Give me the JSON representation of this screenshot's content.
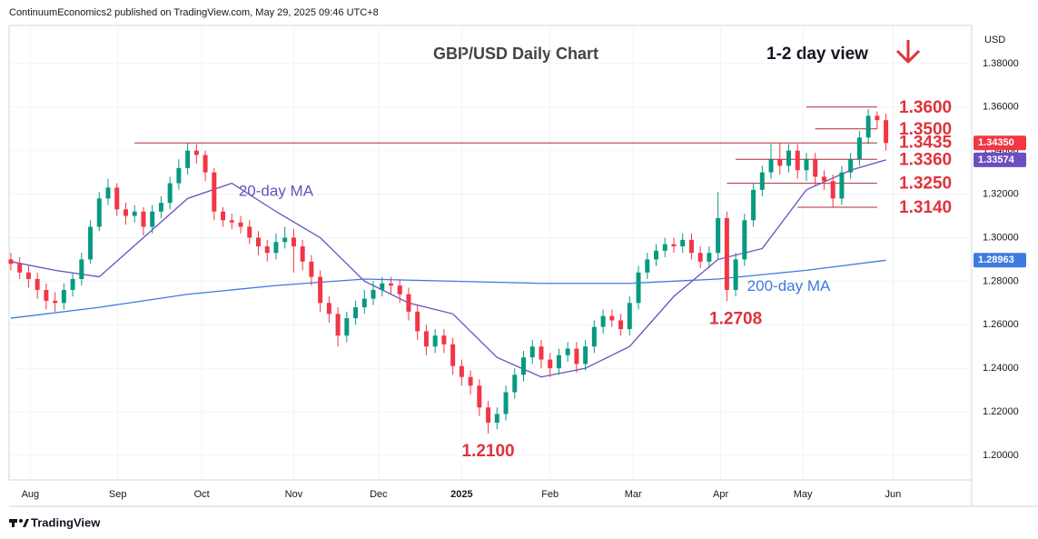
{
  "header": "ContinuumEconomics2 published on TradingView.com, May 29, 2025 09:46 UTC+8",
  "footer": "TradingView",
  "chart_data": {
    "type": "candlestick",
    "title": "GBP/USD Daily Chart",
    "subtitle": "1-2 day view",
    "currency": "USD",
    "up_color": "#089981",
    "down_color": "#f23645",
    "open": [
      1.29,
      1.288,
      1.284,
      1.281,
      1.276,
      1.271,
      1.27,
      1.276,
      1.281,
      1.29,
      1.305,
      1.318,
      1.323,
      1.313,
      1.31,
      1.312,
      1.305,
      1.312,
      1.316,
      1.325,
      1.332,
      1.34,
      1.338,
      1.33,
      1.312,
      1.308,
      1.307,
      1.305,
      1.3,
      1.296,
      1.293,
      1.298,
      1.3,
      1.296,
      1.289,
      1.282,
      1.27,
      1.265,
      1.255,
      1.263,
      1.268,
      1.272,
      1.276,
      1.279,
      1.278,
      1.274,
      1.266,
      1.257,
      1.25,
      1.255,
      1.251,
      1.241,
      1.236,
      1.232,
      1.222,
      1.215,
      1.219,
      1.229,
      1.237,
      1.245,
      1.25,
      1.244,
      1.24,
      1.246,
      1.249,
      1.242,
      1.25,
      1.259,
      1.264,
      1.262,
      1.258,
      1.27,
      1.284,
      1.29,
      1.294,
      1.297,
      1.296,
      1.299,
      1.293,
      1.289,
      1.293,
      1.309,
      1.276,
      1.29,
      1.308,
      1.322,
      1.33,
      1.336,
      1.333,
      1.34,
      1.331,
      1.336,
      1.328,
      1.326,
      1.318,
      1.33,
      1.336,
      1.346,
      1.356,
      1.354
    ],
    "high": [
      1.293,
      1.291,
      1.287,
      1.284,
      1.279,
      1.275,
      1.279,
      1.284,
      1.293,
      1.308,
      1.321,
      1.327,
      1.325,
      1.316,
      1.315,
      1.314,
      1.315,
      1.319,
      1.328,
      1.336,
      1.3435,
      1.343,
      1.34,
      1.332,
      1.314,
      1.311,
      1.31,
      1.308,
      1.303,
      1.299,
      1.302,
      1.305,
      1.304,
      1.299,
      1.292,
      1.285,
      1.273,
      1.268,
      1.266,
      1.271,
      1.276,
      1.28,
      1.282,
      1.282,
      1.281,
      1.277,
      1.269,
      1.26,
      1.258,
      1.258,
      1.254,
      1.244,
      1.239,
      1.235,
      1.225,
      1.222,
      1.232,
      1.24,
      1.248,
      1.253,
      1.253,
      1.247,
      1.249,
      1.252,
      1.252,
      1.253,
      1.262,
      1.267,
      1.267,
      1.265,
      1.273,
      1.287,
      1.293,
      1.297,
      1.3,
      1.3,
      1.302,
      1.302,
      1.296,
      1.296,
      1.321,
      1.312,
      1.293,
      1.311,
      1.325,
      1.333,
      1.343,
      1.3435,
      1.343,
      1.343,
      1.339,
      1.339,
      1.331,
      1.329,
      1.333,
      1.339,
      1.349,
      1.359,
      1.358,
      1.357
    ],
    "low": [
      1.285,
      1.281,
      1.277,
      1.272,
      1.267,
      1.266,
      1.267,
      1.273,
      1.278,
      1.288,
      1.303,
      1.315,
      1.31,
      1.306,
      1.307,
      1.301,
      1.302,
      1.309,
      1.313,
      1.322,
      1.329,
      1.334,
      1.326,
      1.308,
      1.305,
      1.304,
      1.302,
      1.297,
      1.292,
      1.289,
      1.29,
      1.295,
      1.284,
      1.285,
      1.278,
      1.266,
      1.261,
      1.25,
      1.252,
      1.26,
      1.265,
      1.269,
      1.273,
      1.274,
      1.27,
      1.262,
      1.253,
      1.246,
      1.247,
      1.247,
      1.237,
      1.232,
      1.228,
      1.218,
      1.21,
      1.212,
      1.216,
      1.226,
      1.234,
      1.242,
      1.24,
      1.236,
      1.237,
      1.243,
      1.238,
      1.239,
      1.247,
      1.256,
      1.259,
      1.255,
      1.255,
      1.267,
      1.281,
      1.287,
      1.291,
      1.293,
      1.293,
      1.29,
      1.286,
      1.286,
      1.29,
      1.2708,
      1.273,
      1.287,
      1.305,
      1.319,
      1.327,
      1.329,
      1.33,
      1.327,
      1.326,
      1.324,
      1.322,
      1.314,
      1.315,
      1.327,
      1.333,
      1.343,
      1.35,
      1.34
    ],
    "close": [
      1.288,
      1.284,
      1.281,
      1.276,
      1.271,
      1.27,
      1.276,
      1.281,
      1.29,
      1.305,
      1.318,
      1.323,
      1.313,
      1.31,
      1.312,
      1.305,
      1.312,
      1.316,
      1.325,
      1.332,
      1.34,
      1.338,
      1.33,
      1.312,
      1.308,
      1.307,
      1.305,
      1.3,
      1.296,
      1.293,
      1.298,
      1.3,
      1.296,
      1.289,
      1.282,
      1.27,
      1.265,
      1.255,
      1.263,
      1.268,
      1.272,
      1.276,
      1.279,
      1.278,
      1.274,
      1.266,
      1.257,
      1.25,
      1.255,
      1.251,
      1.241,
      1.236,
      1.232,
      1.222,
      1.215,
      1.219,
      1.229,
      1.237,
      1.245,
      1.25,
      1.244,
      1.24,
      1.246,
      1.249,
      1.242,
      1.25,
      1.259,
      1.264,
      1.262,
      1.258,
      1.27,
      1.284,
      1.29,
      1.294,
      1.297,
      1.296,
      1.299,
      1.293,
      1.289,
      1.293,
      1.309,
      1.276,
      1.29,
      1.308,
      1.322,
      1.33,
      1.336,
      1.333,
      1.34,
      1.331,
      1.336,
      1.328,
      1.326,
      1.318,
      1.33,
      1.336,
      1.346,
      1.356,
      1.354,
      1.3435
    ],
    "last_label": "1.34350",
    "series": [
      {
        "name": "20-day MA",
        "color": "#6a4fc0",
        "last_label": "1.33574",
        "x": [
          0,
          5,
          10,
          15,
          20,
          25,
          30,
          35,
          40,
          45,
          50,
          55,
          60,
          65,
          70,
          75,
          80,
          85,
          90,
          95,
          99
        ],
        "values": [
          1.289,
          1.285,
          1.282,
          1.3,
          1.318,
          1.325,
          1.312,
          1.3,
          1.28,
          1.27,
          1.265,
          1.245,
          1.236,
          1.24,
          1.25,
          1.273,
          1.29,
          1.295,
          1.322,
          1.331,
          1.33574
        ]
      },
      {
        "name": "200-day MA",
        "color": "#3d7be0",
        "last_label": "1.28963",
        "x": [
          0,
          10,
          20,
          30,
          40,
          50,
          60,
          70,
          80,
          90,
          99
        ],
        "values": [
          1.263,
          1.268,
          1.274,
          1.278,
          1.281,
          1.28,
          1.279,
          1.279,
          1.281,
          1.285,
          1.28963
        ]
      }
    ],
    "levels": [
      {
        "value": 1.36,
        "label": "1.3600"
      },
      {
        "value": 1.35,
        "label": "1.3500"
      },
      {
        "value": 1.3435,
        "label": "1.3435"
      },
      {
        "value": 1.336,
        "label": "1.3360"
      },
      {
        "value": 1.325,
        "label": "1.3250"
      },
      {
        "value": 1.314,
        "label": "1.3140"
      }
    ],
    "annotations": [
      {
        "text": "1.2708",
        "value": 1.2708
      },
      {
        "text": "1.2100",
        "value": 1.21
      }
    ],
    "xlim": [
      -0.2,
      108.7
    ],
    "xticks": [
      {
        "value": 2.2,
        "label": "Aug"
      },
      {
        "value": 12.1,
        "label": "Sep"
      },
      {
        "value": 21.6,
        "label": "Oct"
      },
      {
        "value": 32,
        "label": "Nov"
      },
      {
        "value": 41.6,
        "label": "Dec"
      },
      {
        "value": 51,
        "label": "2025"
      },
      {
        "value": 61,
        "label": "Feb"
      },
      {
        "value": 70.4,
        "label": "Mar"
      },
      {
        "value": 80.3,
        "label": "Apr"
      },
      {
        "value": 89.6,
        "label": "May"
      },
      {
        "value": 99.8,
        "label": "Jun"
      }
    ],
    "ylim": [
      1.1887,
      1.3975
    ],
    "yticks": [
      {
        "value": 1.2,
        "label": "1.20000"
      },
      {
        "value": 1.22,
        "label": "1.22000"
      },
      {
        "value": 1.24,
        "label": "1.24000"
      },
      {
        "value": 1.26,
        "label": "1.26000"
      },
      {
        "value": 1.28,
        "label": "1.28000"
      },
      {
        "value": 1.3,
        "label": "1.30000"
      },
      {
        "value": 1.32,
        "label": "1.32000"
      },
      {
        "value": 1.34,
        "label": "1.34000"
      },
      {
        "value": 1.36,
        "label": "1.36000"
      },
      {
        "value": 1.38,
        "label": "1.38000"
      }
    ],
    "grid": true
  }
}
